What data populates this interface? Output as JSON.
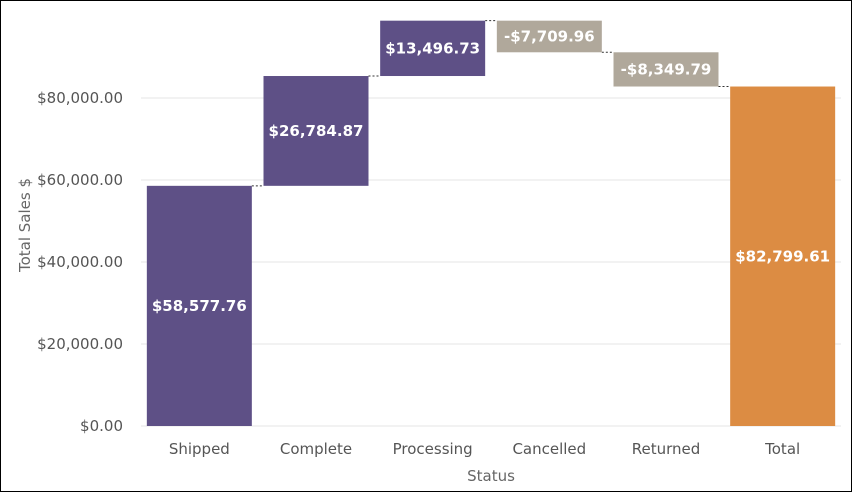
{
  "chart_data": {
    "type": "bar",
    "subtype": "waterfall",
    "xlabel": "Status",
    "ylabel": "Total Sales $",
    "ylim": [
      0,
      100000
    ],
    "yticks": [
      {
        "value": 0,
        "label": "$0.00"
      },
      {
        "value": 20000,
        "label": "$20,000.00"
      },
      {
        "value": 40000,
        "label": "$40,000.00"
      },
      {
        "value": 60000,
        "label": "$60,000.00"
      },
      {
        "value": 80000,
        "label": "$80,000.00"
      }
    ],
    "grid": true,
    "bars": [
      {
        "category": "Shipped",
        "value": 58577.76,
        "label": "$58,577.76",
        "kind": "increase",
        "color": "#5e5086"
      },
      {
        "category": "Complete",
        "value": 26784.87,
        "label": "$26,784.87",
        "kind": "increase",
        "color": "#5e5086"
      },
      {
        "category": "Processing",
        "value": 13496.73,
        "label": "$13,496.73",
        "kind": "increase",
        "color": "#5e5086"
      },
      {
        "category": "Cancelled",
        "value": -7709.96,
        "label": "-$7,709.96",
        "kind": "decrease",
        "color": "#b0a89b"
      },
      {
        "category": "Returned",
        "value": -8349.79,
        "label": "-$8,349.79",
        "kind": "decrease",
        "color": "#b0a89b"
      },
      {
        "category": "Total",
        "value": 82799.61,
        "label": "$82,799.61",
        "kind": "total",
        "color": "#dc8c43"
      }
    ]
  }
}
